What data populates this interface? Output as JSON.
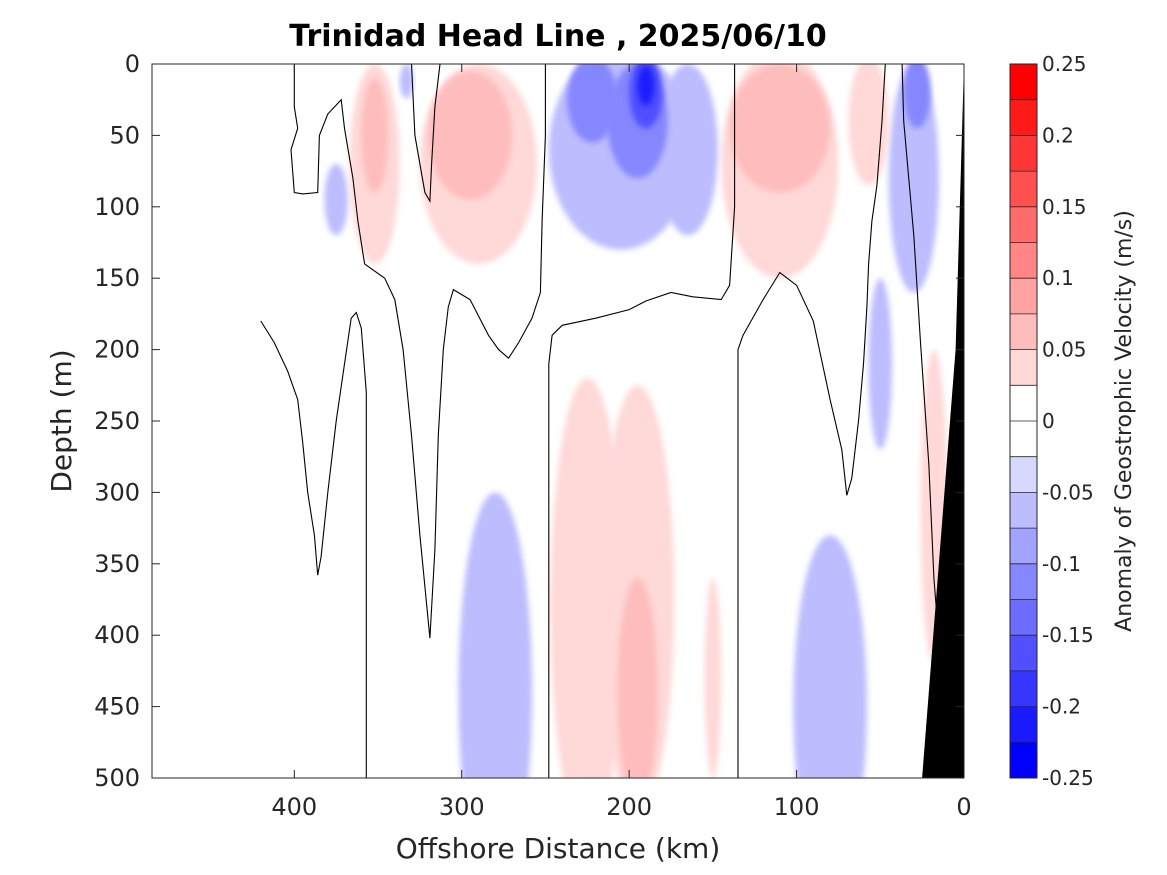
{
  "chart_data": {
    "type": "heatmap",
    "title": "Trinidad Head Line , 2025/06/10",
    "xlabel": "Offshore Distance (km)",
    "ylabel": "Depth (m)",
    "xlim": [
      485,
      0
    ],
    "ylim": [
      500,
      0
    ],
    "x_reversed": true,
    "y_reversed": true,
    "xticks": [
      400,
      300,
      200,
      100,
      0
    ],
    "yticks": [
      0,
      50,
      100,
      150,
      200,
      250,
      300,
      350,
      400,
      450,
      500
    ],
    "colorbar": {
      "label": "Anomaly of Geostrophic Velocity (m/s)",
      "range": [
        -0.25,
        0.25
      ],
      "levels": [
        -0.25,
        -0.225,
        -0.2,
        -0.175,
        -0.15,
        -0.125,
        -0.1,
        -0.075,
        -0.05,
        -0.025,
        0,
        0.025,
        0.05,
        0.075,
        0.1,
        0.125,
        0.15,
        0.175,
        0.2,
        0.225,
        0.25
      ],
      "ticks": [
        0.25,
        0.2,
        0.15,
        0.1,
        0.05,
        0,
        -0.05,
        -0.1,
        -0.15,
        -0.2,
        -0.25
      ],
      "colors": [
        "#0000ff",
        "#1a1aff",
        "#3636ff",
        "#5050ff",
        "#6c6cff",
        "#8686ff",
        "#a2a2ff",
        "#bcbcff",
        "#d8d8ff",
        "#ffffff",
        "#ffffff",
        "#ffd8d8",
        "#ffbcbc",
        "#ffa2a2",
        "#ff8686",
        "#ff6c6c",
        "#ff5050",
        "#ff3636",
        "#ff1a1a",
        "#ff0000"
      ]
    },
    "regions": [
      {
        "name": "blue core 190km surface",
        "value": -0.2,
        "cx": 190,
        "cy": 15,
        "rx": 5,
        "ry": 14
      },
      {
        "name": "blue 190km",
        "value": -0.15,
        "cx": 190,
        "cy": 20,
        "rx": 10,
        "ry": 25
      },
      {
        "name": "blue 220km",
        "value": -0.1,
        "cx": 222,
        "cy": 25,
        "rx": 15,
        "ry": 30
      },
      {
        "name": "blue 195km mid",
        "value": -0.1,
        "cx": 195,
        "cy": 40,
        "rx": 18,
        "ry": 40
      },
      {
        "name": "blue 210km",
        "value": -0.05,
        "cx": 205,
        "cy": 60,
        "rx": 43,
        "ry": 70
      },
      {
        "name": "blue 165km",
        "value": -0.05,
        "cx": 165,
        "cy": 60,
        "rx": 18,
        "ry": 60
      },
      {
        "name": "blue 375km",
        "value": -0.05,
        "cx": 375,
        "cy": 95,
        "rx": 7,
        "ry": 25
      },
      {
        "name": "blue 335km top",
        "value": -0.05,
        "cx": 333,
        "cy": 12,
        "rx": 4,
        "ry": 12
      },
      {
        "name": "blue 25km",
        "value": -0.05,
        "cx": 30,
        "cy": 80,
        "rx": 15,
        "ry": 80
      },
      {
        "name": "blue 25km core",
        "value": -0.1,
        "cx": 28,
        "cy": 20,
        "rx": 8,
        "ry": 25
      },
      {
        "name": "blue 45km deep",
        "value": -0.05,
        "cx": 50,
        "cy": 210,
        "rx": 7,
        "ry": 60
      },
      {
        "name": "blue 285km deep",
        "value": -0.05,
        "cx": 280,
        "cy": 440,
        "rx": 22,
        "ry": 140
      },
      {
        "name": "blue 82km deep",
        "value": -0.05,
        "cx": 80,
        "cy": 450,
        "rx": 22,
        "ry": 120
      },
      {
        "name": "red 300km",
        "value": 0.05,
        "cx": 290,
        "cy": 70,
        "rx": 35,
        "ry": 70
      },
      {
        "name": "red 300km core",
        "value": 0.075,
        "cx": 295,
        "cy": 50,
        "rx": 25,
        "ry": 45
      },
      {
        "name": "red 350km",
        "value": 0.05,
        "cx": 352,
        "cy": 70,
        "rx": 15,
        "ry": 70
      },
      {
        "name": "red 350km core",
        "value": 0.075,
        "cx": 352,
        "cy": 50,
        "rx": 8,
        "ry": 40
      },
      {
        "name": "red 110km",
        "value": 0.05,
        "cx": 110,
        "cy": 70,
        "rx": 35,
        "ry": 80
      },
      {
        "name": "red 110km core",
        "value": 0.075,
        "cx": 110,
        "cy": 45,
        "rx": 30,
        "ry": 45
      },
      {
        "name": "red 55km",
        "value": 0.05,
        "cx": 57,
        "cy": 40,
        "rx": 12,
        "ry": 45
      },
      {
        "name": "red 15km",
        "value": 0.05,
        "cx": 18,
        "cy": 310,
        "rx": 8,
        "ry": 110
      },
      {
        "name": "red 225km deep",
        "value": 0.05,
        "cx": 225,
        "cy": 380,
        "rx": 22,
        "ry": 160
      },
      {
        "name": "red 195km deep",
        "value": 0.05,
        "cx": 195,
        "cy": 375,
        "rx": 22,
        "ry": 150
      },
      {
        "name": "red 195km core",
        "value": 0.075,
        "cx": 195,
        "cy": 440,
        "rx": 12,
        "ry": 80
      },
      {
        "name": "red 150km deep",
        "value": 0.05,
        "cx": 150,
        "cy": 430,
        "rx": 5,
        "ry": 70
      }
    ],
    "zero_contours": [
      [
        [
          420,
          180
        ],
        [
          412,
          195
        ],
        [
          404,
          215
        ],
        [
          398,
          235
        ],
        [
          395,
          265
        ],
        [
          392,
          300
        ],
        [
          388,
          330
        ],
        [
          386,
          358
        ],
        [
          384,
          345
        ],
        [
          380,
          300
        ],
        [
          375,
          250
        ],
        [
          370,
          210
        ],
        [
          366,
          178
        ],
        [
          363,
          174
        ],
        [
          360,
          185
        ],
        [
          357,
          230
        ],
        [
          357,
          500
        ]
      ],
      [
        [
          400,
          0
        ],
        [
          400,
          30
        ],
        [
          398,
          45
        ],
        [
          402,
          60
        ],
        [
          400,
          90
        ],
        [
          395,
          91
        ],
        [
          386,
          90
        ],
        [
          385,
          50
        ],
        [
          380,
          35
        ],
        [
          372,
          25
        ],
        [
          370,
          45
        ],
        [
          365,
          80
        ],
        [
          362,
          110
        ],
        [
          358,
          140
        ],
        [
          346,
          150
        ],
        [
          340,
          165
        ],
        [
          335,
          200
        ],
        [
          330,
          260
        ],
        [
          325,
          330
        ],
        [
          319,
          402
        ],
        [
          316,
          340
        ],
        [
          314,
          260
        ],
        [
          311,
          200
        ],
        [
          308,
          170
        ],
        [
          305,
          158
        ],
        [
          295,
          165
        ],
        [
          284,
          190
        ],
        [
          278,
          200
        ],
        [
          272,
          206
        ],
        [
          266,
          195
        ],
        [
          258,
          178
        ],
        [
          253,
          160
        ],
        [
          252,
          110
        ],
        [
          250,
          50
        ],
        [
          250,
          0
        ]
      ],
      [
        [
          330,
          0
        ],
        [
          328,
          50
        ],
        [
          322,
          90
        ],
        [
          319,
          96
        ],
        [
          318,
          70
        ],
        [
          316,
          30
        ],
        [
          313,
          0
        ]
      ],
      [
        [
          248,
          500
        ],
        [
          248,
          300
        ],
        [
          248,
          210
        ],
        [
          246,
          190
        ],
        [
          240,
          183
        ],
        [
          220,
          178
        ],
        [
          200,
          172
        ],
        [
          190,
          166
        ],
        [
          175,
          160
        ],
        [
          162,
          163
        ],
        [
          145,
          165
        ],
        [
          140,
          155
        ],
        [
          137,
          100
        ],
        [
          137,
          50
        ],
        [
          137,
          0
        ]
      ],
      [
        [
          135,
          500
        ],
        [
          135,
          300
        ],
        [
          135,
          200
        ],
        [
          132,
          190
        ],
        [
          120,
          165
        ],
        [
          110,
          146
        ],
        [
          100,
          155
        ],
        [
          90,
          180
        ],
        [
          80,
          235
        ],
        [
          73,
          270
        ],
        [
          70,
          302
        ],
        [
          67,
          290
        ],
        [
          63,
          250
        ],
        [
          60,
          210
        ],
        [
          58,
          170
        ],
        [
          57,
          140
        ],
        [
          55,
          110
        ],
        [
          52,
          85
        ],
        [
          49,
          40
        ],
        [
          47,
          0
        ]
      ],
      [
        [
          37,
          0
        ],
        [
          36,
          40
        ],
        [
          30,
          120
        ],
        [
          26,
          195
        ],
        [
          21,
          280
        ],
        [
          18,
          360
        ],
        [
          14,
          420
        ],
        [
          11,
          500
        ]
      ]
    ],
    "topography_black": [
      [
        0,
        0
      ],
      [
        0,
        500
      ],
      [
        25,
        500
      ],
      [
        5,
        200
      ],
      [
        0,
        0
      ]
    ]
  }
}
